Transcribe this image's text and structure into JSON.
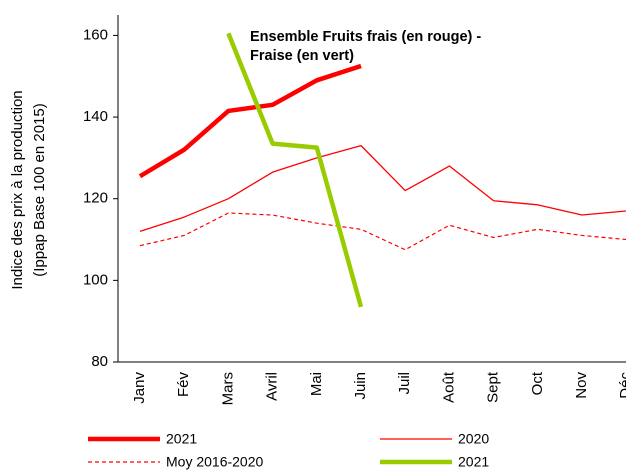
{
  "chart_data": {
    "type": "line",
    "title": [
      "Ensemble Fruits frais (en rouge) -",
      "Fraise (en vert)"
    ],
    "y_label": [
      "Indice des prix à la production",
      "(Ippap Base 100 en 2015)"
    ],
    "categories": [
      "Janv",
      "Fév",
      "Mars",
      "Avril",
      "Mai",
      "Juin",
      "Juil",
      "Août",
      "Sept",
      "Oct",
      "Nov",
      "Déc"
    ],
    "series": [
      {
        "name": "2021",
        "color": "#ff0000",
        "style": "thick",
        "values": [
          125.5,
          132,
          141.5,
          143,
          149,
          152.5,
          null,
          null,
          null,
          null,
          null,
          null
        ]
      },
      {
        "name": "2020",
        "color": "#ff0000",
        "style": "thin",
        "values": [
          112,
          115.5,
          120,
          126.5,
          130,
          133,
          122,
          128,
          119.5,
          118.5,
          116,
          117
        ]
      },
      {
        "name": "Moy 2016-2020",
        "color": "#ff0000",
        "style": "dashed",
        "values": [
          108.5,
          111,
          116.5,
          116,
          114,
          112.5,
          107.5,
          113.5,
          110.5,
          112.5,
          111,
          110
        ]
      },
      {
        "name": "2021",
        "color": "#99cc00",
        "style": "thick",
        "values": [
          null,
          null,
          160.5,
          133.5,
          132.5,
          93.5,
          null,
          null,
          null,
          null,
          null,
          null
        ]
      }
    ],
    "ylim": [
      80,
      165
    ],
    "yticks": [
      80,
      100,
      120,
      140,
      160
    ]
  }
}
